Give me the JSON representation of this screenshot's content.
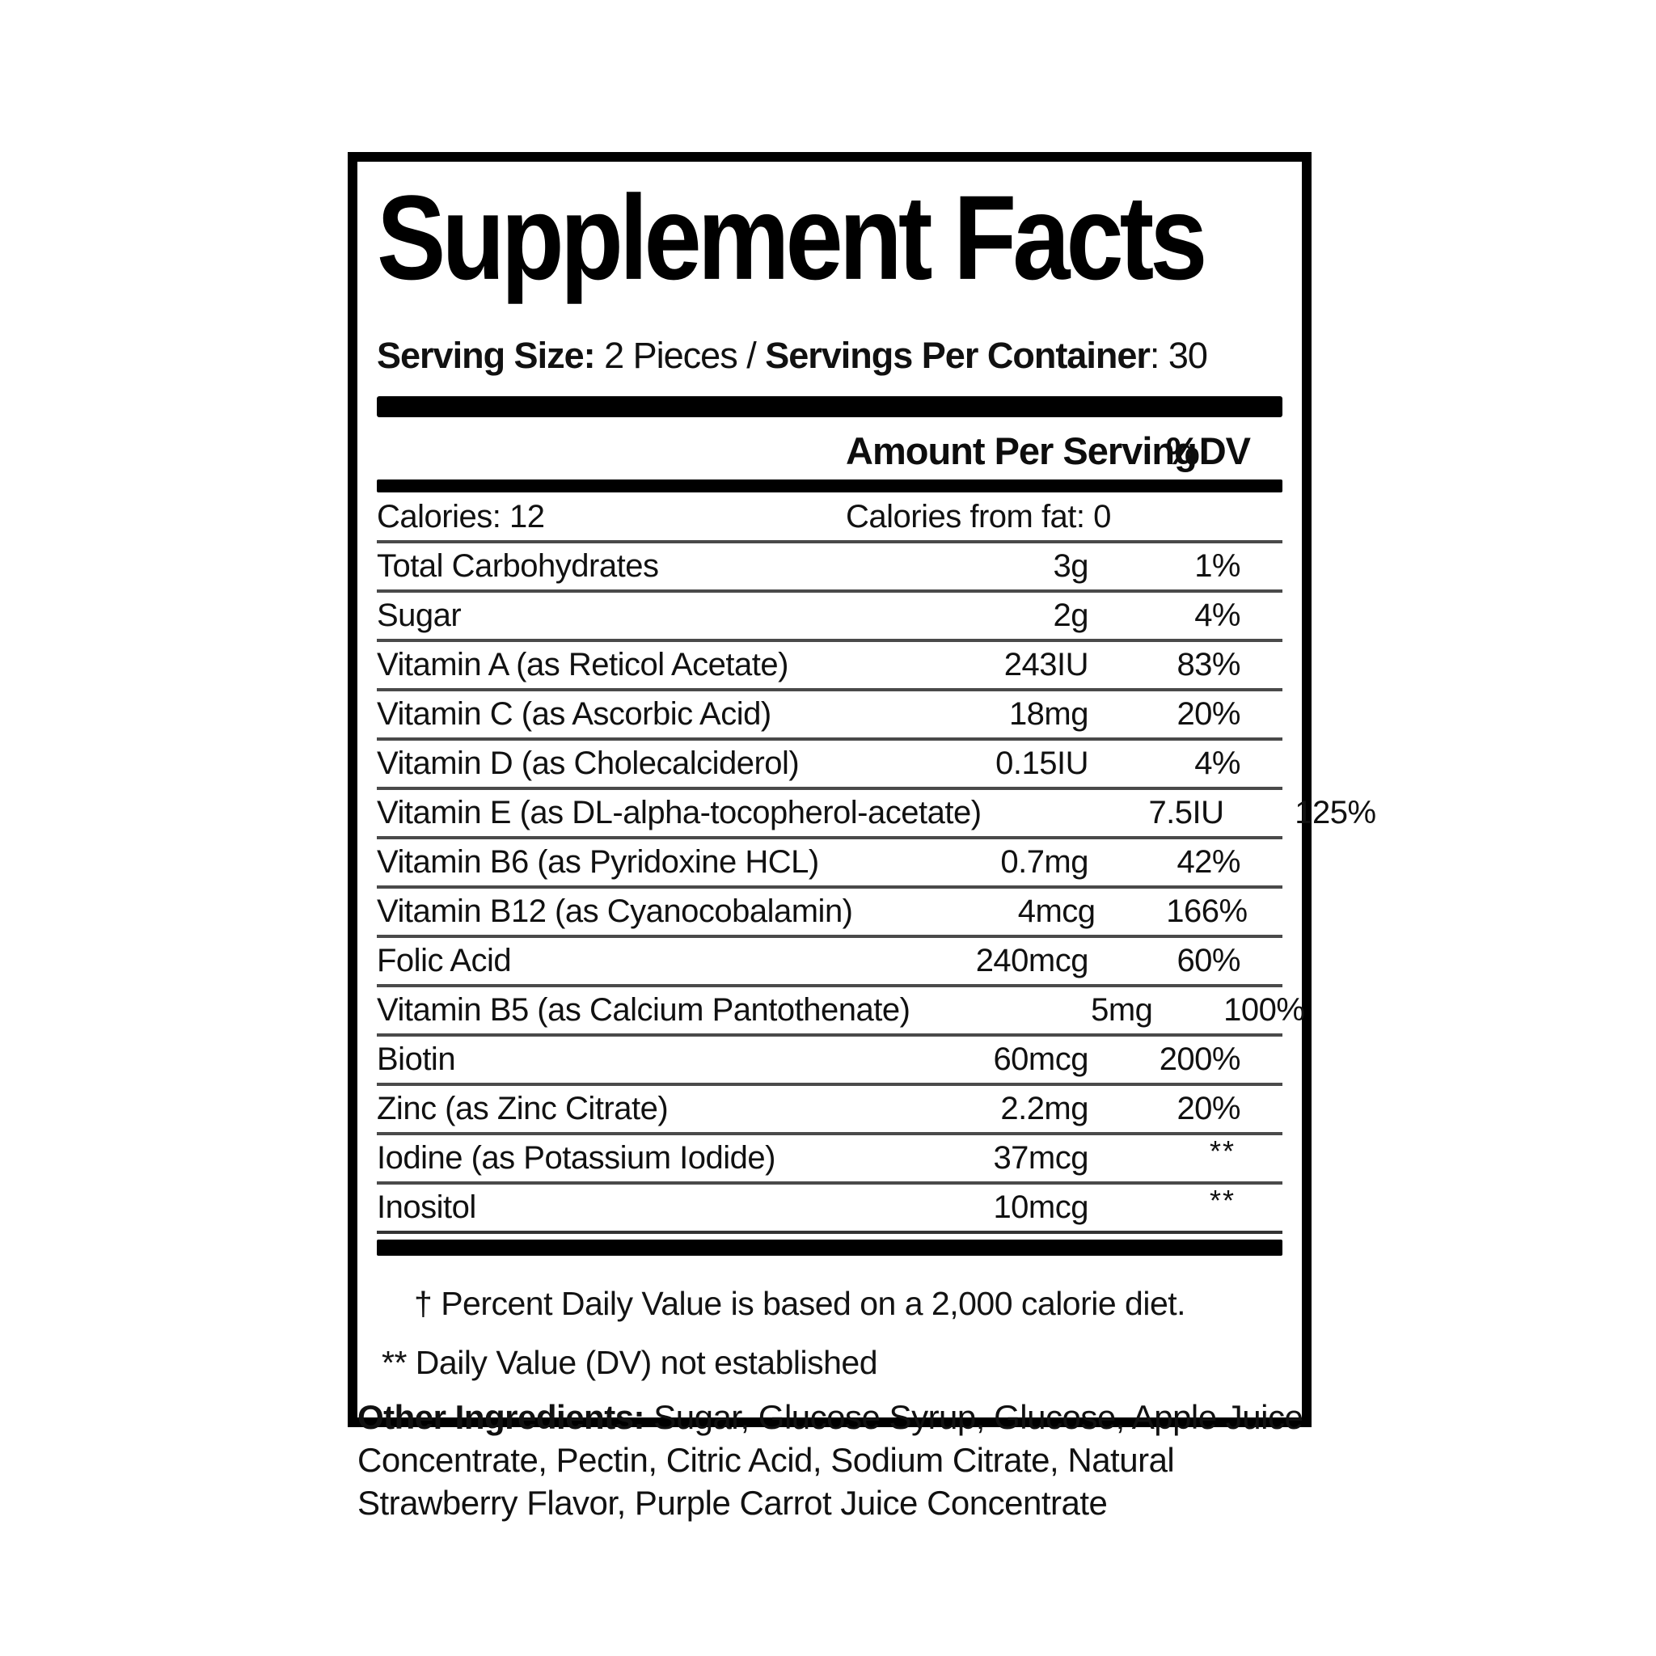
{
  "label": {
    "title": "Supplement Facts",
    "serving_line": {
      "serving_size_label": "Serving Size:",
      "serving_size_value": " 2 Pieces / ",
      "servings_label": "Servings Per Container",
      "servings_value": ": 30"
    },
    "header": {
      "amount": "Amount Per Serving",
      "dv": "%DV"
    },
    "calories_row": {
      "left": "Calories: 12",
      "right": "Calories from fat: 0"
    },
    "rows": [
      {
        "name": "Total Carbohydrates",
        "amount": "3g",
        "dv": "1%"
      },
      {
        "name": "Sugar",
        "amount": "2g",
        "dv": "4%"
      },
      {
        "name": "Vitamin A (as Reticol Acetate)",
        "amount": "243IU",
        "dv": "83%"
      },
      {
        "name": "Vitamin C (as Ascorbic Acid)",
        "amount": "18mg",
        "dv": "20%"
      },
      {
        "name": "Vitamin D (as Cholecalciderol)",
        "amount": "0.15IU",
        "dv": "4%"
      },
      {
        "name": "Vitamin E (as DL-alpha-tocopherol-acetate)",
        "amount": "7.5IU",
        "dv": "125%"
      },
      {
        "name": "Vitamin B6 (as Pyridoxine HCL)",
        "amount": "0.7mg",
        "dv": "42%"
      },
      {
        "name": "Vitamin B12 (as Cyanocobalamin)",
        "amount": "4mcg",
        "dv": "166%"
      },
      {
        "name": "Folic Acid",
        "amount": "240mcg",
        "dv": "60%"
      },
      {
        "name": "Vitamin B5 (as Calcium Pantothenate)",
        "amount": "5mg",
        "dv": "100%"
      },
      {
        "name": "Biotin",
        "amount": "60mcg",
        "dv": "200%"
      },
      {
        "name": "Zinc (as Zinc Citrate)",
        "amount": "2.2mg",
        "dv": "20%"
      },
      {
        "name": "Iodine (as Potassium Iodide)",
        "amount": "37mcg",
        "dv": "**"
      },
      {
        "name": "Inositol",
        "amount": "10mcg",
        "dv": "**"
      }
    ],
    "footnotes": {
      "dagger": "† Percent Daily Value is based on a 2,000 calorie diet.",
      "double_star": "** Daily Value (DV) not established"
    },
    "other_ingredients": {
      "label": "Other Ingredients:",
      "text": " Sugar, Glucose Syrup, Glucose, Apple Juice Concentrate, Pectin, Citric Acid, Sodium Citrate, Natural Strawberry Flavor, Purple Carrot Juice Concentrate"
    },
    "colors": {
      "ink": "#111111",
      "bar": "#000000",
      "rule": "#4a4a4a",
      "background": "#ffffff"
    }
  }
}
